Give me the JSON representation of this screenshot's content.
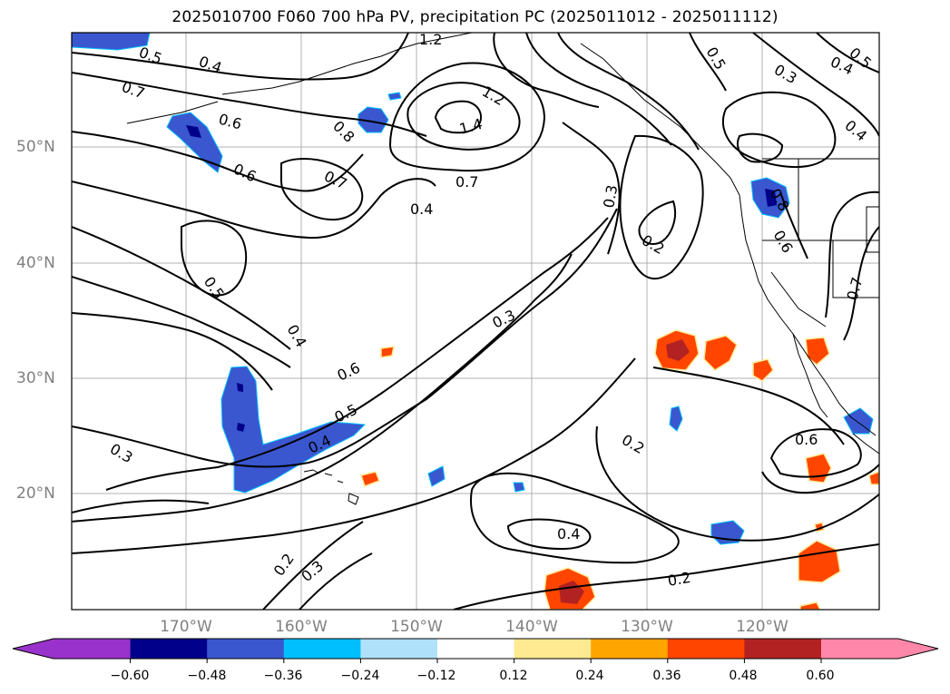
{
  "title": "2025010700 F060 700 hPa PV, precipitation PC (2025011012 - 2025011112)",
  "map": {
    "lon_labels": [
      "170°W",
      "160°W",
      "150°W",
      "140°W",
      "130°W",
      "120°W"
    ],
    "lat_labels": [
      "50°N",
      "40°N",
      "30°N",
      "20°N"
    ],
    "contour_labels": [
      "0.5",
      "0.4",
      "1.2",
      "0.5",
      "0.3",
      "0.4",
      "0.5",
      "0.7",
      "1.2",
      "0.6",
      "0.8",
      "1.4",
      "0.4",
      "0.6",
      "0.7",
      "0.7",
      "0.4",
      "0.3",
      "0.8",
      "0.2",
      "0.6",
      "0.5",
      "0.4",
      "0.7",
      "0.3",
      "0.6",
      "0.5",
      "0.4",
      "0.3",
      "0.2",
      "0.6",
      "0.4",
      "0.2",
      "0.3",
      "0.2"
    ],
    "colors": {
      "coast": "#000000",
      "grid": "#b0b0b0",
      "contour": "#000000"
    }
  },
  "colorbar": {
    "ticks": [
      "−0.60",
      "−0.48",
      "−0.36",
      "−0.24",
      "−0.12",
      "0.12",
      "0.24",
      "0.36",
      "0.48",
      "0.60"
    ],
    "colors": [
      "#9932cc",
      "#00008b",
      "#3a57cf",
      "#00bfff",
      "#afe1fa",
      "#ffffff",
      "#ffe991",
      "#ffa500",
      "#ff4500",
      "#b22222",
      "#ff88aa"
    ]
  }
}
